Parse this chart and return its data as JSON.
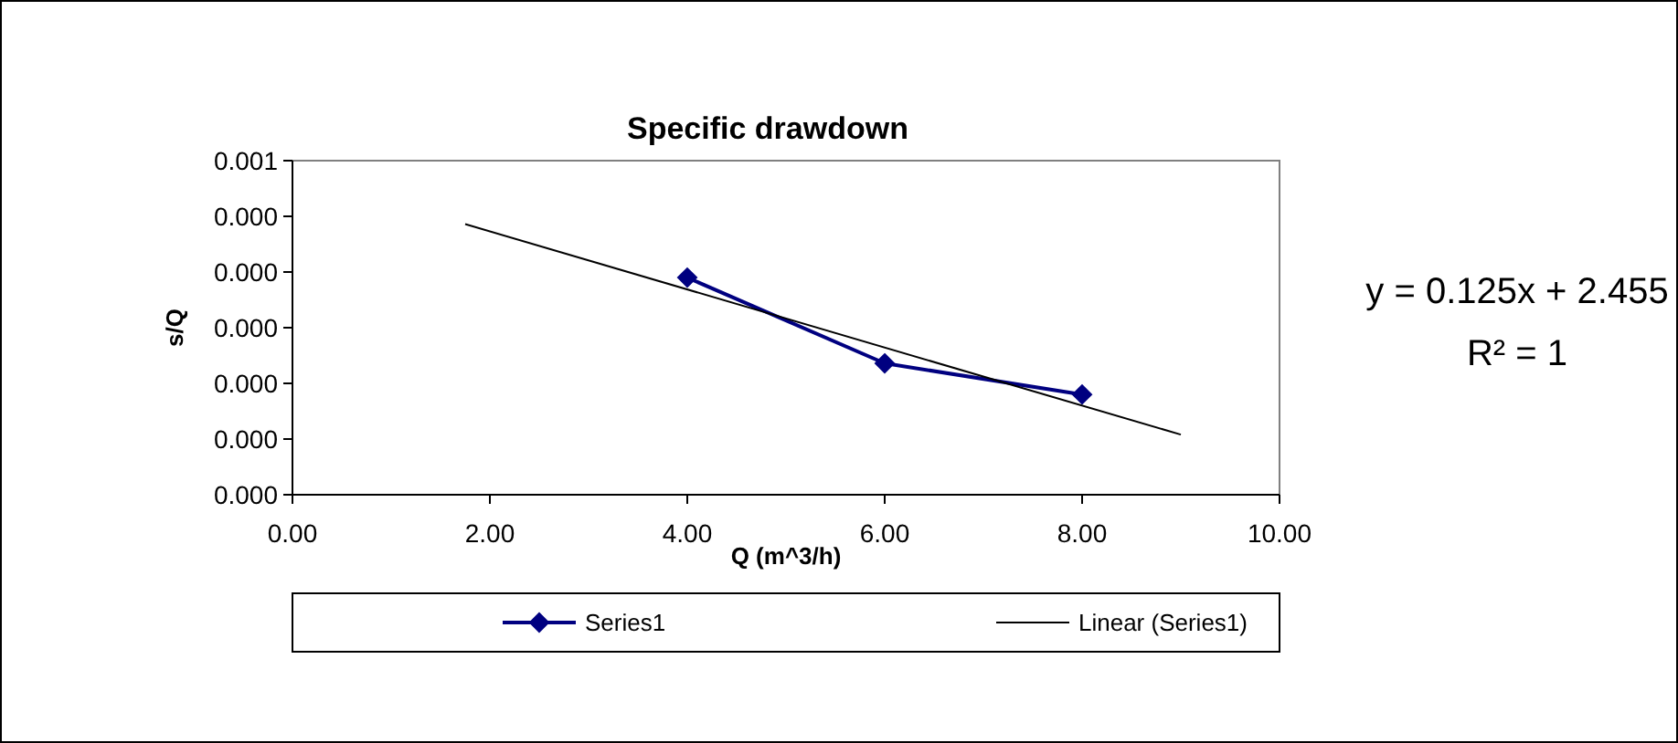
{
  "chart_data": {
    "type": "line",
    "title": "Specific drawdown",
    "xlabel": "Q (m^3/h)",
    "ylabel": "s/Q",
    "xlim": [
      0,
      10
    ],
    "xticks": [
      {
        "value": 0,
        "label": "0.00"
      },
      {
        "value": 2,
        "label": "2.00"
      },
      {
        "value": 4,
        "label": "4.00"
      },
      {
        "value": 6,
        "label": "6.00"
      },
      {
        "value": 8,
        "label": "8.00"
      },
      {
        "value": 10,
        "label": "10.00"
      }
    ],
    "ylim": [
      0.0002,
      0.0005
    ],
    "yticks": [
      {
        "value": 0.0002,
        "label": "0.000"
      },
      {
        "value": 0.00025,
        "label": "0.000"
      },
      {
        "value": 0.0003,
        "label": "0.000"
      },
      {
        "value": 0.00035,
        "label": "0.000"
      },
      {
        "value": 0.0004,
        "label": "0.000"
      },
      {
        "value": 0.00045,
        "label": "0.000"
      },
      {
        "value": 0.0005,
        "label": "0.001"
      }
    ],
    "series": [
      {
        "name": "Series1",
        "color": "#000080",
        "x": [
          4,
          6,
          8
        ],
        "values": [
          0.000395,
          0.000318,
          0.00029
        ],
        "marker": "diamond"
      },
      {
        "name": "Linear (Series1)",
        "color": "#000000",
        "x": [
          1.75,
          9
        ],
        "values": [
          0.000443,
          0.000254
        ],
        "marker": "none"
      }
    ],
    "annotations": [
      "y = 0.125x + 2.455",
      "R² = 1"
    ],
    "legend": "bottom",
    "grid": false
  }
}
